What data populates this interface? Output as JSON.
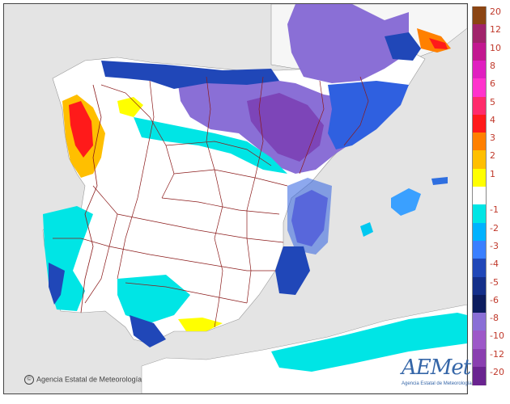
{
  "legend": {
    "items": [
      {
        "label": "20",
        "color": "#8b4513"
      },
      {
        "label": "12",
        "color": "#a0246b"
      },
      {
        "label": "10",
        "color": "#c21890"
      },
      {
        "label": "8",
        "color": "#e01fc0"
      },
      {
        "label": "6",
        "color": "#ff33cc"
      },
      {
        "label": "5",
        "color": "#ff2b6b"
      },
      {
        "label": "4",
        "color": "#ff1a1a"
      },
      {
        "label": "3",
        "color": "#ff8000"
      },
      {
        "label": "2",
        "color": "#ffbf00"
      },
      {
        "label": "1",
        "color": "#ffff00"
      },
      {
        "label": "",
        "color": "#ffffff"
      },
      {
        "label": "-1",
        "color": "#00e5e5"
      },
      {
        "label": "-2",
        "color": "#00b2ff"
      },
      {
        "label": "-3",
        "color": "#3a7fff"
      },
      {
        "label": "-4",
        "color": "#2047b8"
      },
      {
        "label": "-5",
        "color": "#142f8a"
      },
      {
        "label": "-6",
        "color": "#0c1c5e"
      },
      {
        "label": "-8",
        "color": "#8a6fd6"
      },
      {
        "label": "-10",
        "color": "#9d58c8"
      },
      {
        "label": "-12",
        "color": "#8a3fb0"
      },
      {
        "label": "-20",
        "color": "#6a2490"
      }
    ]
  },
  "footer": {
    "copyright_symbol": "©",
    "copyright_text": "Agencia Estatal de Meteorología"
  },
  "logo": {
    "wordmark": "AEMet",
    "tagline": "Agencia Estatal de Meteorología"
  }
}
